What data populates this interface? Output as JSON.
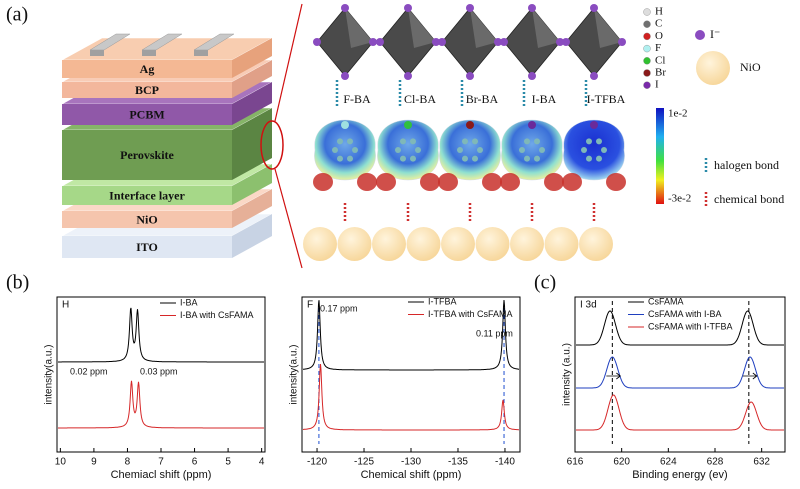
{
  "schematic": {
    "panel_label": "(a)",
    "layers": [
      "Ag",
      "BCP",
      "PCBM",
      "Perovskite",
      "Interface layer",
      "NiO",
      "ITO"
    ],
    "molecules": [
      "F-BA",
      "Cl-BA",
      "Br-BA",
      "I-BA",
      "I-TFBA"
    ],
    "elements": [
      "H",
      "C",
      "O",
      "F",
      "Cl",
      "Br",
      "I"
    ],
    "ion": "I⁻",
    "substrate": "NiO",
    "colorbar": {
      "max": "1e-2",
      "min": "-3e-2"
    },
    "bonds": [
      "halogen bond",
      "chemical bond"
    ]
  },
  "chart_data": [
    {
      "type": "line",
      "panel_label": "(b)",
      "label": "H",
      "xlabel": "Chemiacl shift (ppm)",
      "ylabel": "intensity(a.u.)",
      "xlim": [
        10.1,
        3.9
      ],
      "xticks": [
        10,
        9,
        8,
        7,
        6,
        5,
        4
      ],
      "series": [
        {
          "name": "I-BA",
          "color": "#000000",
          "peaks": [
            7.9,
            7.7
          ]
        },
        {
          "name": "I-BA with CsFAMA",
          "color": "#d62728",
          "peaks": [
            7.88,
            7.67
          ]
        }
      ],
      "annotations": [
        "0.02 ppm",
        "0.03 ppm"
      ]
    },
    {
      "type": "line",
      "label": "F",
      "xlabel": "Chemical shift (ppm)",
      "ylabel": "intensity(a.u.)",
      "xlim": [
        -118.4,
        -141.6
      ],
      "xticks": [
        -120,
        -125,
        -130,
        -135,
        -140
      ],
      "series": [
        {
          "name": "I-TFBA",
          "color": "#000000",
          "peaks": [
            -120.2,
            -139.9
          ]
        },
        {
          "name": "I-TFBA with CsFAMA",
          "color": "#d62728",
          "peaks": [
            -120.37,
            -139.79
          ]
        }
      ],
      "guides": [
        -120.2,
        -139.9
      ],
      "guide_color": "#1f4fd0",
      "annotations": [
        "0.17 ppm",
        "0.11 ppm"
      ]
    },
    {
      "type": "line",
      "panel_label": "(c)",
      "label": "I 3d",
      "xlabel": "Binding energy (ev)",
      "ylabel": "intensity (a.u.)",
      "xlim": [
        616,
        634
      ],
      "xticks": [
        616,
        620,
        624,
        628,
        632
      ],
      "series": [
        {
          "name": "CsFAMA",
          "color": "#000000",
          "peaks": [
            619.0,
            630.8
          ]
        },
        {
          "name": "CsFAMA with I-BA",
          "color": "#1f3fbf",
          "peaks": [
            619.2,
            631.0
          ]
        },
        {
          "name": "CsFAMA with I-TFBA",
          "color": "#d62728",
          "peaks": [
            619.3,
            631.1
          ]
        }
      ],
      "guides": [
        619.2,
        630.9
      ],
      "guide_color": "#000000"
    }
  ]
}
